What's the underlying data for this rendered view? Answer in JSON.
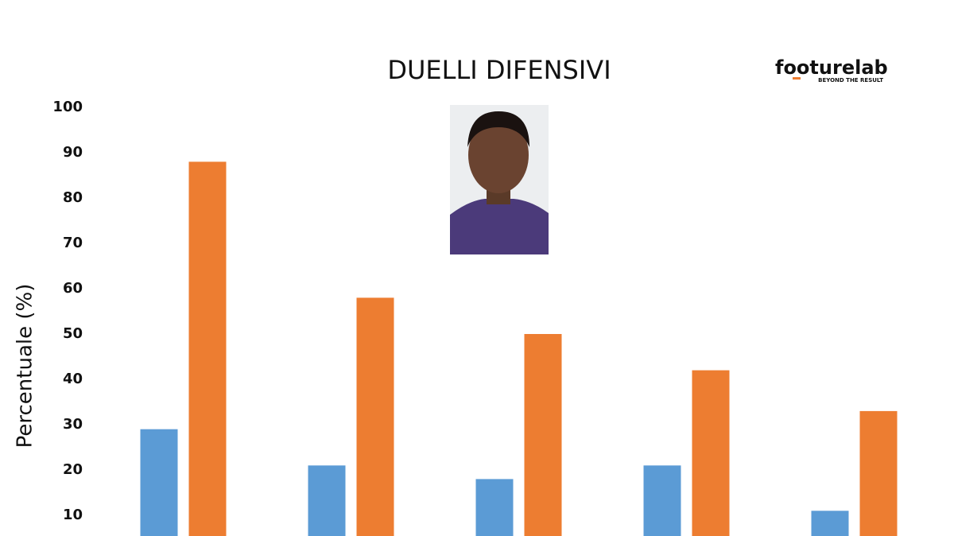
{
  "chart_data": {
    "type": "bar",
    "title": "DUELLI DIFENSIVI",
    "y_label": "Percentuale (%)",
    "categories": [
      null,
      null,
      null,
      null,
      null
    ],
    "series": [
      {
        "color": "#5b9bd5",
        "values": [
          29,
          21,
          18,
          21,
          11
        ]
      },
      {
        "color": "#ed7d31",
        "values": [
          88,
          58,
          50,
          42,
          33
        ]
      }
    ],
    "ylim": [
      0,
      100
    ],
    "yticks": [
      10,
      20,
      30,
      40,
      50,
      60,
      70,
      80,
      90,
      100
    ],
    "grid": false
  },
  "logo": {
    "text": "footurelab",
    "tagline": "BEYOND THE RESULT"
  }
}
